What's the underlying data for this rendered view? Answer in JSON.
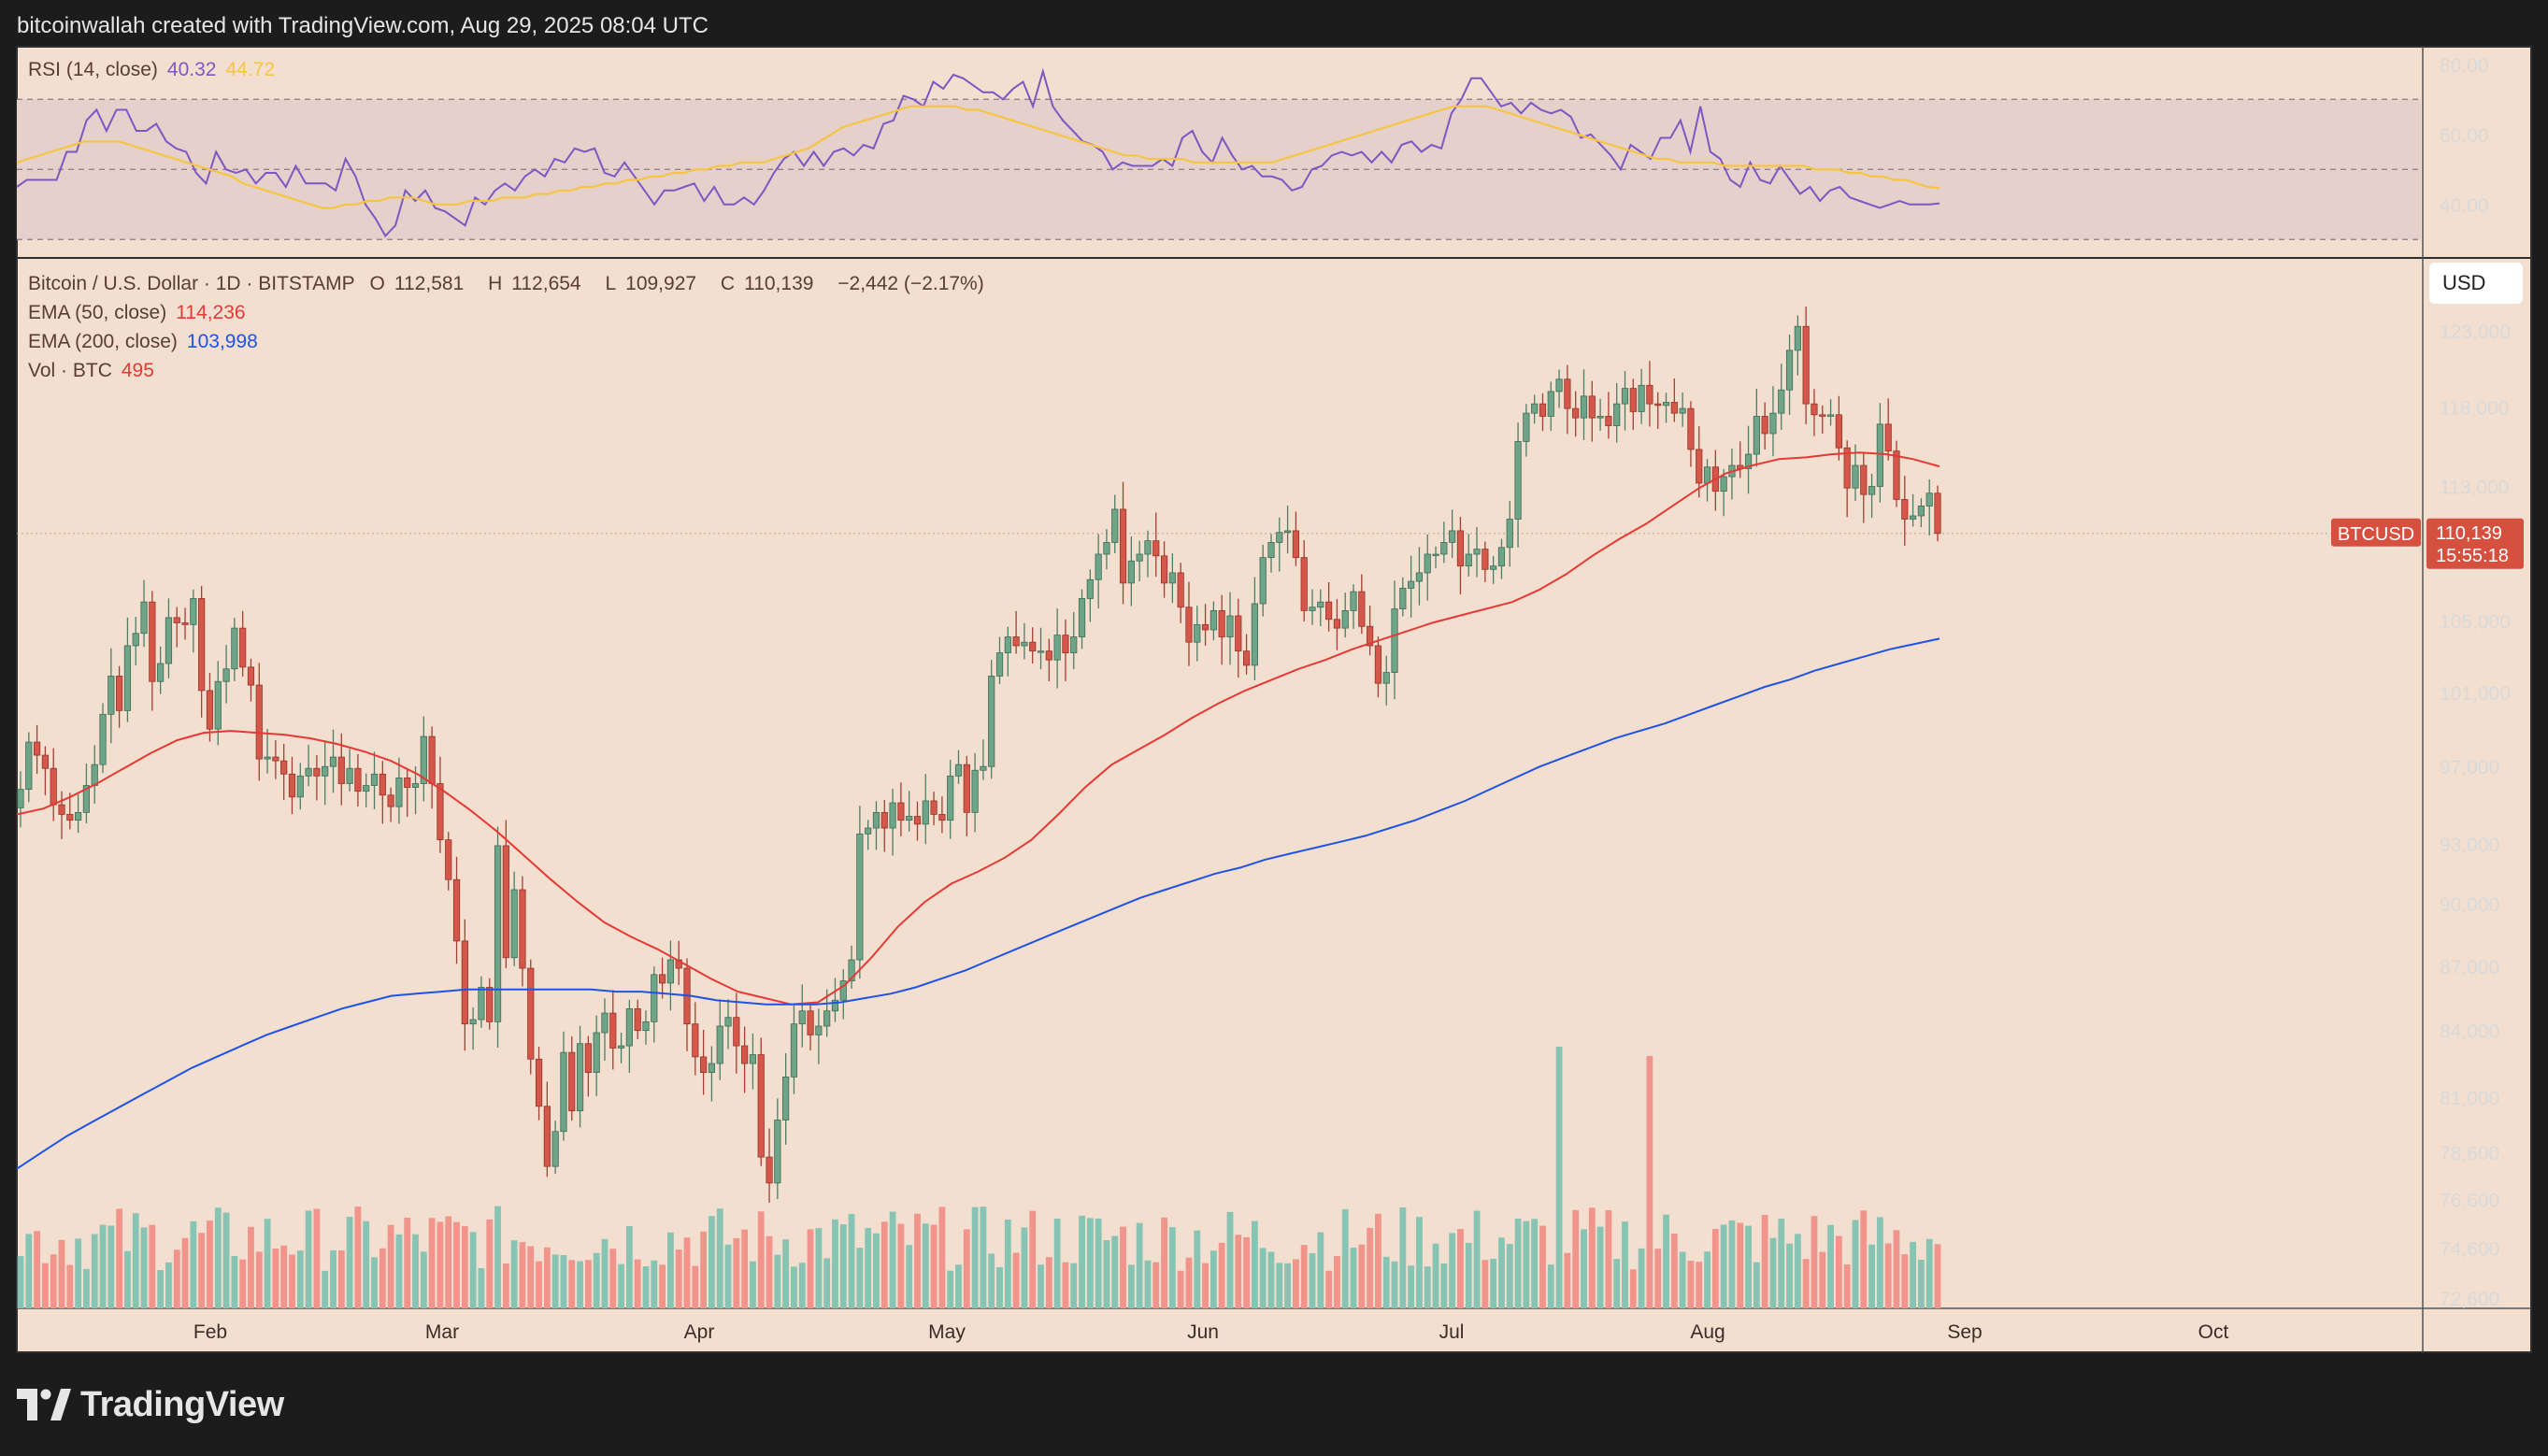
{
  "header": {
    "caption": "bitcoinwallah created with TradingView.com, Aug 29, 2025 08:04 UTC"
  },
  "rsi_panel": {
    "label": "RSI (14, close)",
    "value": "40.32",
    "ma_value": "44.72",
    "value_color": "#7e57c2",
    "ma_color": "#f5c542",
    "axis_ticks": [
      "80.00",
      "60.00",
      "40.00"
    ]
  },
  "price_panel": {
    "symbol": "Bitcoin / U.S. Dollar · 1D · BITSTAMP",
    "ohlc": {
      "open_label": "O",
      "open": "112,581",
      "high_label": "H",
      "high": "112,654",
      "low_label": "L",
      "low": "109,927",
      "close_label": "C",
      "close": "110,139",
      "change": "−2,442 (−2.17%)"
    },
    "ema50": {
      "label": "EMA (50, close)",
      "value": "114,236",
      "color": "#e53935"
    },
    "ema200": {
      "label": "EMA (200, close)",
      "value": "103,998",
      "color": "#1e53e5"
    },
    "volume": {
      "label": "Vol · BTC",
      "value": "495",
      "color": "#e53935"
    },
    "currency_button": "USD",
    "price_badge": {
      "symbol": "BTCUSD",
      "price": "110,139",
      "countdown": "15:55:18",
      "color": "#d65040"
    },
    "axis_ticks": [
      "123,000",
      "118,000",
      "113,000",
      "105,000",
      "101,000",
      "97,000",
      "93,000",
      "90,000",
      "87,000",
      "84,000",
      "81,000",
      "78,600",
      "76,600",
      "74,600",
      "72,600"
    ]
  },
  "time_axis": [
    "Feb",
    "Mar",
    "Apr",
    "May",
    "Jun",
    "Jul",
    "Aug",
    "Sep",
    "Oct"
  ],
  "branding": {
    "name": "TradingView",
    "logo_icon": "tradingview-logo-icon"
  },
  "colors": {
    "background": "#f3dfcf",
    "up_candle": "#6ea588",
    "down_candle": "#d4574a",
    "up_volume": "#88c4b4",
    "down_volume": "#f0948c"
  },
  "chart_data": [
    {
      "type": "line",
      "title": "RSI (14, close)",
      "ylim": [
        25,
        85
      ],
      "guides": [
        70,
        50,
        30
      ],
      "x_start": "2025-01-03",
      "x_end": "2025-08-29",
      "series": [
        {
          "name": "RSI (14, close)",
          "color": "#7e57c2",
          "values": [
            45,
            47,
            47,
            47,
            47,
            55,
            55,
            64,
            67,
            61,
            67,
            67,
            61,
            61,
            63,
            58,
            56,
            55,
            49,
            46,
            55,
            50,
            49,
            50,
            46,
            49,
            49,
            45,
            51,
            46,
            46,
            46,
            44,
            53,
            48,
            40,
            36,
            31,
            34,
            44,
            41,
            44,
            39,
            38,
            36,
            34,
            42,
            40,
            44,
            46,
            44,
            48,
            50,
            48,
            53,
            52,
            56,
            55,
            56,
            49,
            48,
            52,
            48,
            44,
            40,
            44,
            44,
            45,
            46,
            41,
            45,
            40,
            40,
            42,
            40,
            44,
            49,
            53,
            55,
            51,
            55,
            51,
            55,
            56,
            54,
            57,
            56,
            63,
            64,
            71,
            70,
            68,
            75,
            73,
            77,
            76,
            74,
            72,
            72,
            70,
            73,
            75,
            68,
            78,
            68,
            64,
            61,
            58,
            57,
            55,
            50,
            52,
            51,
            51,
            51,
            53,
            51,
            59,
            61,
            55,
            52,
            59,
            54,
            50,
            51,
            48,
            48,
            47,
            44,
            45,
            50,
            51,
            54,
            55,
            54,
            55,
            52,
            55,
            52,
            57,
            58,
            55,
            57,
            56,
            66,
            70,
            76,
            76,
            72,
            68,
            69,
            66,
            69,
            67,
            66,
            67,
            65,
            59,
            60,
            57,
            54,
            50,
            57,
            55,
            53,
            59,
            59,
            64,
            55,
            68,
            55,
            53,
            47,
            45,
            52,
            47,
            46,
            51,
            47,
            43,
            45,
            41,
            44,
            45,
            42,
            41,
            40,
            39,
            40,
            41,
            40,
            40,
            40,
            40.32
          ]
        },
        {
          "name": "RSI-based MA",
          "color": "#f5c542",
          "values": [
            52,
            53,
            54,
            55,
            56,
            57,
            58,
            58,
            58,
            58,
            57,
            56,
            55,
            54,
            53,
            52,
            51,
            50,
            49,
            48,
            46,
            45,
            44,
            43,
            42,
            41,
            40,
            39,
            39,
            40,
            40,
            41,
            41,
            42,
            42,
            42,
            41,
            40,
            40,
            40,
            41,
            41,
            41,
            42,
            42,
            42,
            43,
            43,
            44,
            44,
            45,
            45,
            46,
            46,
            47,
            47,
            48,
            48,
            49,
            49,
            50,
            50,
            51,
            51,
            52,
            52,
            52,
            53,
            54,
            55,
            56,
            58,
            60,
            62,
            63,
            64,
            65,
            66,
            67,
            68,
            68,
            68,
            68,
            68,
            67,
            67,
            66,
            65,
            64,
            63,
            62,
            61,
            60,
            59,
            58,
            57,
            56,
            55,
            54,
            54,
            53,
            53,
            53,
            53,
            52,
            52,
            52,
            52,
            52,
            52,
            52,
            52,
            53,
            54,
            55,
            56,
            57,
            58,
            59,
            60,
            61,
            62,
            63,
            64,
            65,
            66,
            67,
            68,
            68,
            68,
            68,
            67,
            66,
            65,
            64,
            63,
            62,
            61,
            60,
            59,
            58,
            57,
            56,
            55,
            54,
            53,
            53,
            52,
            52,
            52,
            52,
            51,
            51,
            51,
            51,
            51,
            51,
            51,
            51,
            50,
            50,
            50,
            49,
            49,
            48,
            48,
            47,
            47,
            46,
            45,
            44.72
          ]
        }
      ]
    },
    {
      "type": "candlestick",
      "title": "Bitcoin / U.S. Dollar · 1D · BITSTAMP",
      "x_start": "2025-01-03",
      "x_end": "2025-08-29",
      "ylim": [
        72600,
        125000
      ],
      "y_scale": "log",
      "close": [
        95800,
        98300,
        97600,
        96900,
        95000,
        94500,
        94200,
        94600,
        96000,
        97100,
        99800,
        101900,
        100000,
        103600,
        104300,
        106100,
        101600,
        102600,
        105200,
        104900,
        104800,
        106300,
        101100,
        99000,
        101600,
        102300,
        104600,
        102400,
        101400,
        97400,
        97500,
        97300,
        96600,
        95400,
        96500,
        96900,
        96500,
        97000,
        97500,
        96100,
        96900,
        95700,
        96000,
        96600,
        95500,
        94900,
        96400,
        95900,
        96100,
        98600,
        96100,
        93200,
        91200,
        88200,
        84300,
        84500,
        86000,
        84400,
        92900,
        87400,
        90700,
        86900,
        82700,
        80600,
        78000,
        79500,
        83000,
        80400,
        83400,
        82100,
        83900,
        84800,
        83200,
        83300,
        85000,
        84000,
        84400,
        86600,
        86200,
        87300,
        86900,
        84300,
        82800,
        82100,
        82500,
        84200,
        84600,
        83300,
        82500,
        82900,
        78400,
        77300,
        80000,
        81900,
        84300,
        84900,
        83800,
        84200,
        84900,
        85400,
        86300,
        87300,
        93500,
        93800,
        94600,
        93800,
        95100,
        94200,
        94400,
        94000,
        95200,
        94500,
        94200,
        96500,
        97100,
        94600,
        96800,
        97000,
        101900,
        103200,
        104100,
        103600,
        103800,
        103300,
        103300,
        102800,
        104200,
        103200,
        104100,
        106300,
        107400,
        108900,
        109600,
        111600,
        107200,
        108500,
        108900,
        109700,
        108800,
        107200,
        107800,
        105800,
        103800,
        104800,
        104500,
        105600,
        104100,
        105300,
        103300,
        102500,
        106000,
        108700,
        109600,
        110200,
        110300,
        108700,
        105600,
        105800,
        106100,
        105100,
        104600,
        105600,
        106700,
        104700,
        103600,
        101500,
        102100,
        105700,
        106900,
        107300,
        107800,
        108900,
        108900,
        109600,
        110300,
        108200,
        108900,
        109200,
        108000,
        108200,
        109300,
        111000,
        115800,
        117600,
        118200,
        117400,
        119000,
        119800,
        117900,
        117300,
        118700,
        117300,
        117400,
        116800,
        118200,
        119200,
        117700,
        119400,
        118200,
        118100,
        118300,
        117600,
        117900,
        115300,
        113200,
        114200,
        112700,
        113600,
        114300,
        114100,
        115000,
        117400,
        116300,
        117600,
        119100,
        121700,
        123300,
        118200,
        117500,
        117400,
        117500,
        115400,
        112900,
        114300,
        112500,
        113000,
        116900,
        115200,
        112200,
        111000,
        111200,
        111800,
        112581,
        110139
      ],
      "note": "Daily closes in USD, estimated from the chart; last close 110,139 (O 112,581 H 112,654 L 109,927)."
    },
    {
      "type": "line",
      "title": "EMA overlays",
      "ylim": [
        72600,
        125000
      ],
      "series": [
        {
          "name": "EMA (50, close)",
          "color": "#e53935",
          "values": [
            94500,
            94800,
            95400,
            96100,
            96900,
            97700,
            98400,
            98800,
            98900,
            98800,
            98700,
            98500,
            98200,
            97800,
            97300,
            96600,
            95700,
            94700,
            93600,
            92400,
            91200,
            90100,
            89100,
            88400,
            87800,
            87100,
            86400,
            85800,
            85500,
            85200,
            85300,
            86100,
            87400,
            88900,
            90100,
            91000,
            91600,
            92300,
            93200,
            94500,
            95900,
            97100,
            97900,
            98700,
            99600,
            100400,
            101100,
            101700,
            102300,
            102800,
            103400,
            103900,
            104400,
            104900,
            105300,
            105700,
            106100,
            106800,
            107700,
            108800,
            109800,
            110700,
            111800,
            112900,
            113800,
            114300,
            114700,
            114800,
            115000,
            115100,
            115000,
            114700,
            114236
          ]
        },
        {
          "name": "EMA (200, close)",
          "color": "#1e53e5",
          "values": [
            77900,
            78600,
            79300,
            79900,
            80500,
            81100,
            81700,
            82300,
            82800,
            83300,
            83800,
            84200,
            84600,
            85000,
            85300,
            85600,
            85700,
            85800,
            85900,
            85900,
            85900,
            85900,
            85900,
            85900,
            85800,
            85800,
            85700,
            85600,
            85400,
            85300,
            85200,
            85200,
            85200,
            85300,
            85500,
            85700,
            86000,
            86400,
            86800,
            87300,
            87800,
            88300,
            88800,
            89300,
            89800,
            90300,
            90700,
            91100,
            91500,
            91800,
            92200,
            92500,
            92800,
            93100,
            93400,
            93800,
            94200,
            94700,
            95200,
            95800,
            96400,
            97000,
            97500,
            98000,
            98500,
            98900,
            99300,
            99800,
            100300,
            100800,
            101300,
            101700,
            102200,
            102600,
            103000,
            103400,
            103700,
            103998
          ]
        }
      ]
    }
  ]
}
